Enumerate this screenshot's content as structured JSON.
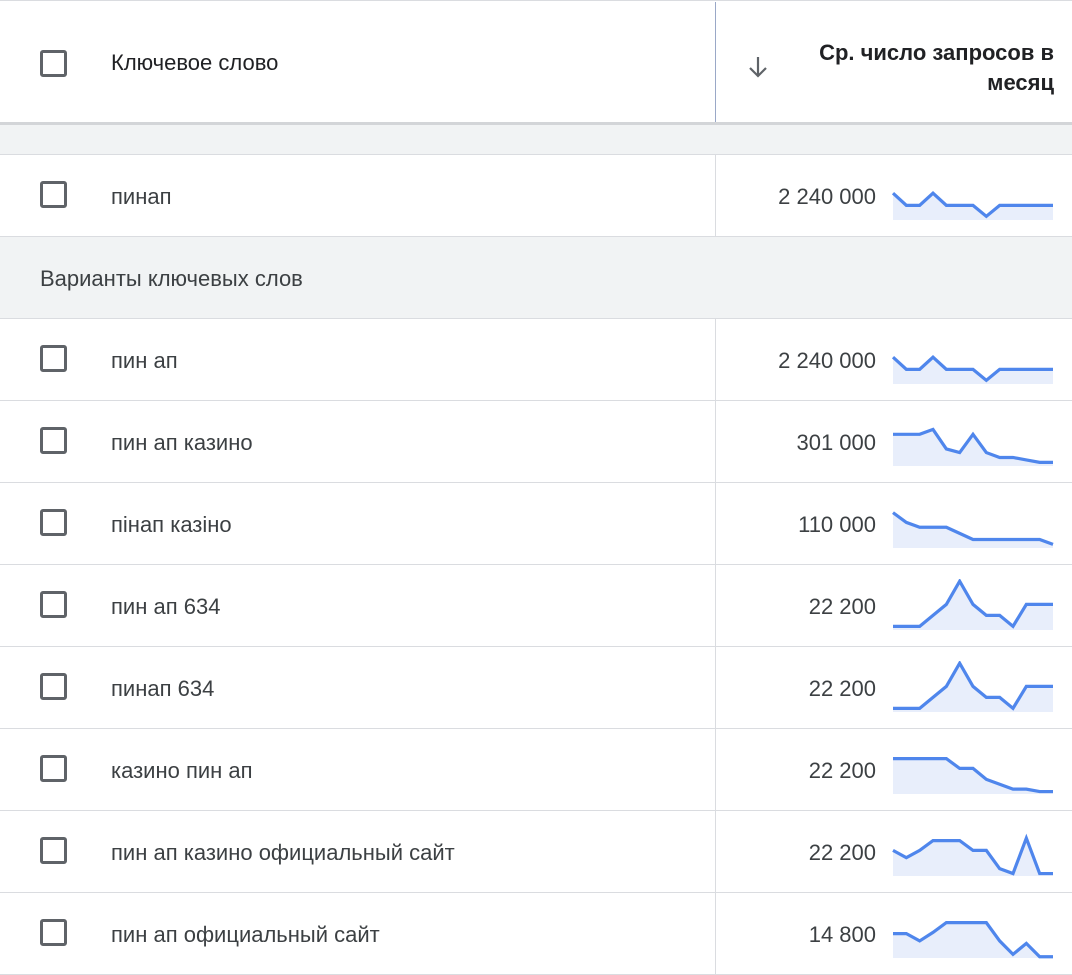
{
  "header": {
    "keyword_label": "Ключевое слово",
    "volume_label_line1": "Ср. число запросов в",
    "volume_label_line2": "месяц"
  },
  "section": {
    "variants_label": "Варианты ключевых слов"
  },
  "colors": {
    "spark_line": "#4f86ec",
    "spark_fill": "#e8eefb",
    "divider": "#dadce0",
    "section_bg": "#f1f3f4"
  },
  "rows": [
    {
      "keyword": "пинап",
      "volume": "2 240 000",
      "trend": [
        2.2,
        0.2,
        0.2,
        2.2,
        0.2,
        0.2,
        0.2,
        -1.6,
        0.2,
        0.2,
        0.2,
        0.2,
        0.2
      ]
    },
    {
      "keyword": "пин ап",
      "volume": "2 240 000",
      "trend": [
        2.2,
        0.2,
        0.2,
        2.2,
        0.2,
        0.2,
        0.2,
        -1.6,
        0.2,
        0.2,
        0.2,
        0.2,
        0.2
      ]
    },
    {
      "keyword": "пин ап казино",
      "volume": "301 000",
      "trend": [
        3.0,
        3.0,
        3.0,
        3.8,
        0.6,
        0.0,
        3.0,
        0.0,
        -0.8,
        -0.8,
        -1.2,
        -1.6,
        -1.6
      ]
    },
    {
      "keyword": "пінап казіно",
      "volume": "110 000",
      "trend": [
        3.6,
        2.0,
        1.2,
        1.2,
        1.2,
        0.2,
        -0.8,
        -0.8,
        -0.8,
        -0.8,
        -0.8,
        -0.8,
        -1.6
      ]
    },
    {
      "keyword": "пин ап 634",
      "volume": "22 200",
      "trend": [
        -1.6,
        -1.6,
        -1.6,
        0.2,
        2.0,
        5.8,
        2.0,
        0.2,
        0.2,
        -1.6,
        2.0,
        2.0,
        2.0
      ]
    },
    {
      "keyword": "пинап 634",
      "volume": "22 200",
      "trend": [
        -1.6,
        -1.6,
        -1.6,
        0.2,
        2.0,
        5.8,
        2.0,
        0.2,
        0.2,
        -1.6,
        2.0,
        2.0,
        2.0
      ]
    },
    {
      "keyword": "казино пин ап",
      "volume": "22 200",
      "trend": [
        3.6,
        3.6,
        3.6,
        3.6,
        3.6,
        2.0,
        2.0,
        0.2,
        -0.6,
        -1.4,
        -1.4,
        -1.8,
        -1.8
      ]
    },
    {
      "keyword": "пин ап казино официальный сайт",
      "volume": "22 200",
      "trend": [
        2.0,
        0.8,
        2.0,
        3.6,
        3.6,
        3.6,
        2.0,
        2.0,
        -1.0,
        -1.8,
        4.0,
        -1.8,
        -1.8
      ]
    },
    {
      "keyword": "пин ап официальный сайт",
      "volume": "14 800",
      "trend": [
        1.8,
        1.8,
        0.6,
        2.0,
        3.6,
        3.6,
        3.6,
        3.6,
        0.6,
        -1.6,
        0.2,
        -2.0,
        -2.0
      ]
    }
  ]
}
